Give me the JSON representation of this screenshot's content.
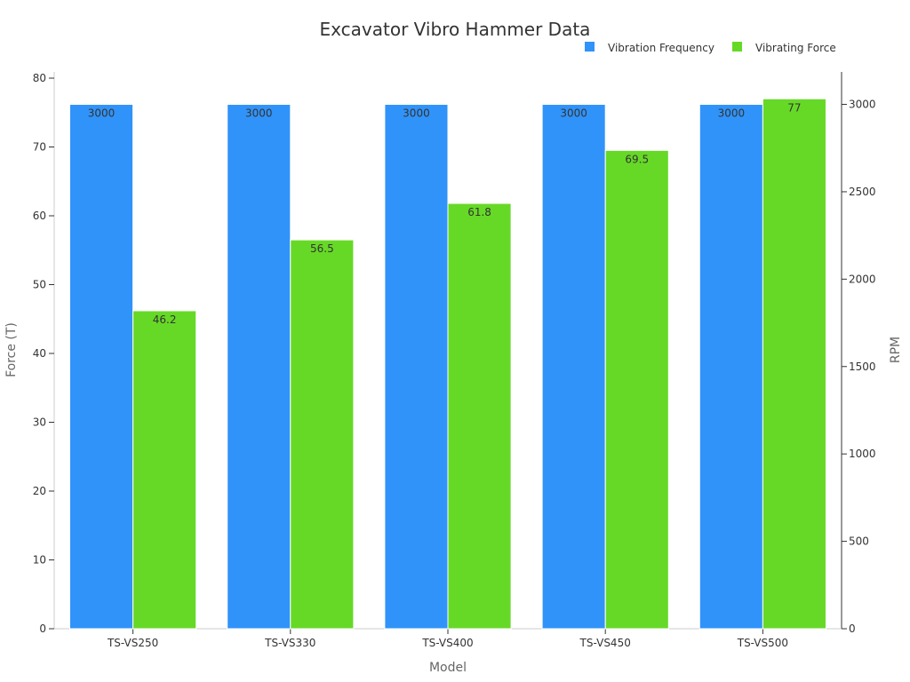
{
  "chart_data": {
    "type": "bar",
    "title": "Excavator Vibro Hammer Data",
    "xlabel": "Model",
    "ylabel_left": "Force (T)",
    "ylabel_right": "RPM",
    "categories": [
      "TS-VS250",
      "TS-VS330",
      "TS-VS400",
      "TS-VS450",
      "TS-VS500"
    ],
    "series": [
      {
        "name": "Vibration Frequency",
        "axis": "right",
        "color": "#3093f9",
        "values": [
          3000,
          3000,
          3000,
          3000,
          3000
        ],
        "labels": [
          "3000",
          "3000",
          "3000",
          "3000",
          "3000"
        ]
      },
      {
        "name": "Vibrating Force",
        "axis": "left",
        "color": "#66d927",
        "values": [
          46.2,
          56.5,
          61.8,
          69.5,
          77
        ],
        "labels": [
          "46.2",
          "56.5",
          "61.8",
          "69.5",
          "77"
        ]
      }
    ],
    "ylim_left": [
      0,
      80
    ],
    "yticks_left": [
      "0",
      "10",
      "20",
      "30",
      "40",
      "50",
      "60",
      "70",
      "80"
    ],
    "ylim_right": [
      0,
      3150
    ],
    "yticks_right": [
      "0",
      "500",
      "1000",
      "1500",
      "2000",
      "2500",
      "3000"
    ],
    "grid": false,
    "legend_position": "top-right"
  }
}
